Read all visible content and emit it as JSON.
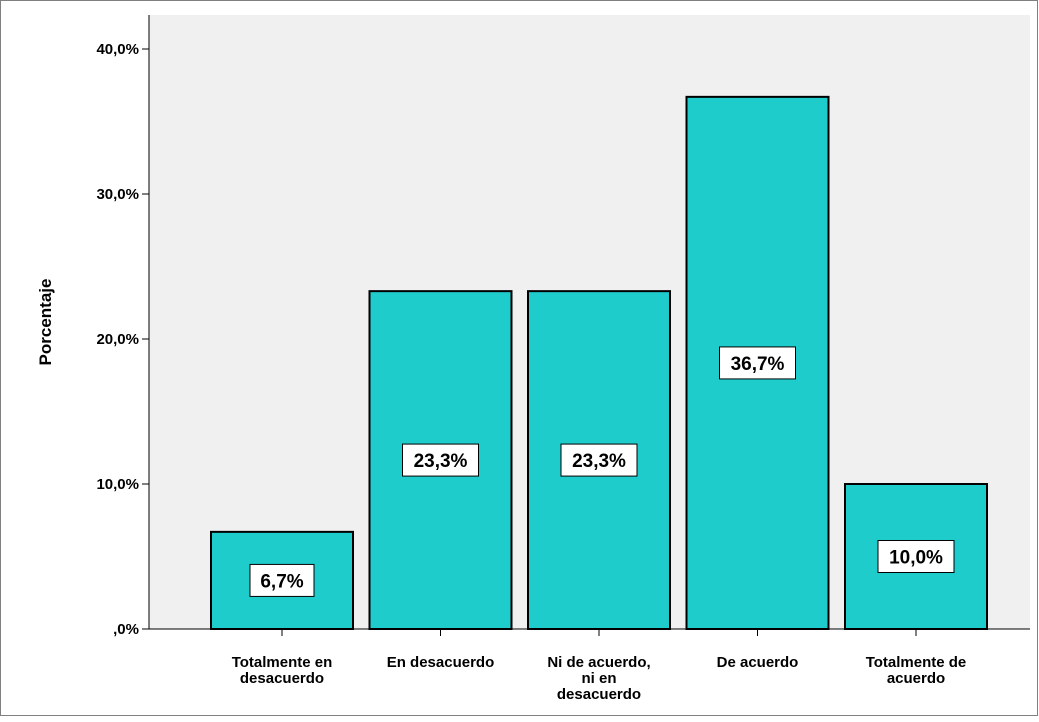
{
  "chart_data": {
    "type": "bar",
    "categories": [
      [
        "Totalmente  en",
        "desacuerdo"
      ],
      [
        "En desacuerdo"
      ],
      [
        "Ni de acuerdo,",
        "ni en",
        "desacuerdo"
      ],
      [
        "De acuerdo"
      ],
      [
        "Totalmente de",
        "acuerdo"
      ]
    ],
    "values": [
      6.7,
      23.3,
      23.3,
      36.7,
      10.0
    ],
    "data_labels": [
      "6,7%",
      "23,3%",
      "23,3%",
      "36,7%",
      "10,0%"
    ],
    "title": "",
    "xlabel": "",
    "ylabel": "Porcentaje",
    "ylim": [
      0,
      40
    ],
    "yticks": [
      0,
      10,
      20,
      30,
      40
    ],
    "ytick_labels": [
      ",0%",
      "10,0%",
      "20,0%",
      "30,0%",
      "40,0%"
    ],
    "grid": false,
    "legend": "none",
    "colors": {
      "bar": "#1fcccc",
      "bar_border": "#000000",
      "plot_bg": "#f0f0f0",
      "label_box": "#ffffff"
    }
  }
}
